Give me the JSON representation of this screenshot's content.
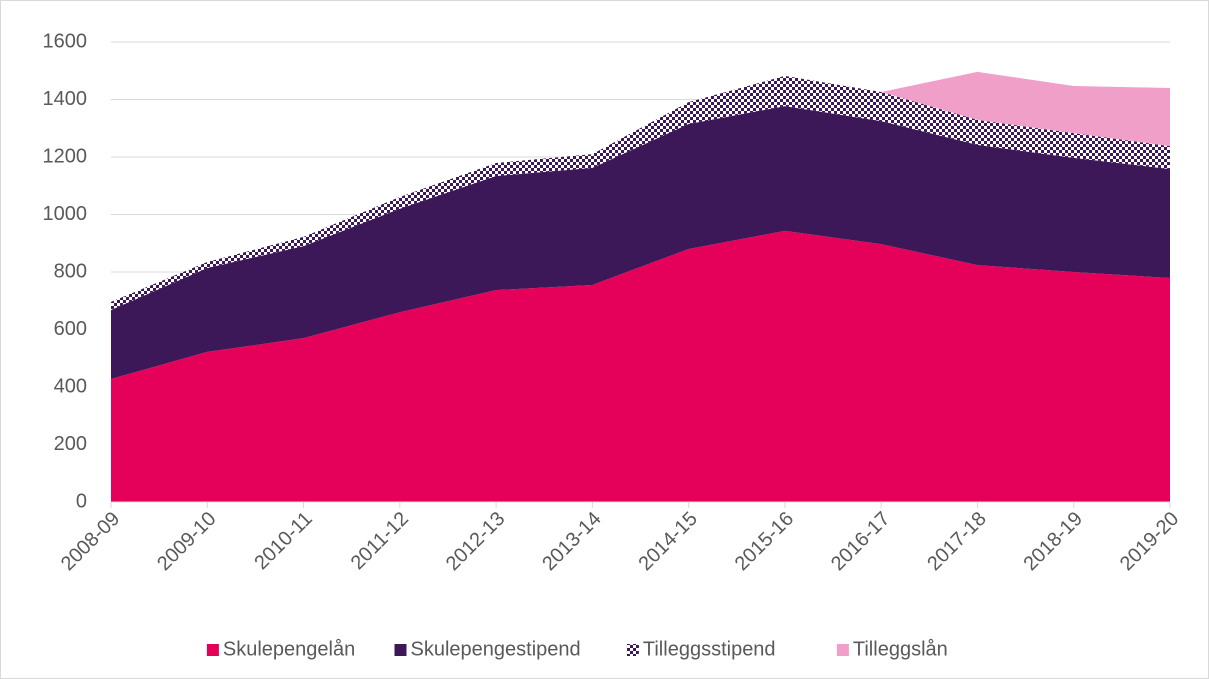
{
  "chart_data": {
    "type": "stacked_area",
    "categories": [
      "2008-09",
      "2009-10",
      "2010-11",
      "2011-12",
      "2012-13",
      "2013-14",
      "2014-15",
      "2015-16",
      "2016-17",
      "2017-18",
      "2018-19",
      "2019-20"
    ],
    "series": [
      {
        "name": "Skulepengelån",
        "color": "#e5005a",
        "values": [
          428,
          522,
          570,
          660,
          737,
          755,
          880,
          943,
          897,
          824,
          800,
          779
        ]
      },
      {
        "name": "Skulepengestipend",
        "color": "#3d1858",
        "values": [
          240,
          292,
          320,
          360,
          397,
          407,
          435,
          434,
          428,
          418,
          397,
          379
        ]
      },
      {
        "name": "Tilleggsstipend",
        "color": "#3d1858",
        "pattern": "checker",
        "values": [
          28,
          21,
          32,
          41,
          45,
          48,
          76,
          105,
          101,
          87,
          86,
          80
        ]
      },
      {
        "name": "Tilleggslån",
        "color": "#f0a0c8",
        "values": [
          0,
          0,
          0,
          0,
          0,
          0,
          0,
          0,
          0,
          167,
          164,
          202
        ]
      }
    ],
    "ylim": [
      0,
      1600
    ],
    "yticks": [
      0,
      200,
      400,
      600,
      800,
      1000,
      1200,
      1400,
      1600
    ],
    "grid": true,
    "legend": "bottom"
  }
}
